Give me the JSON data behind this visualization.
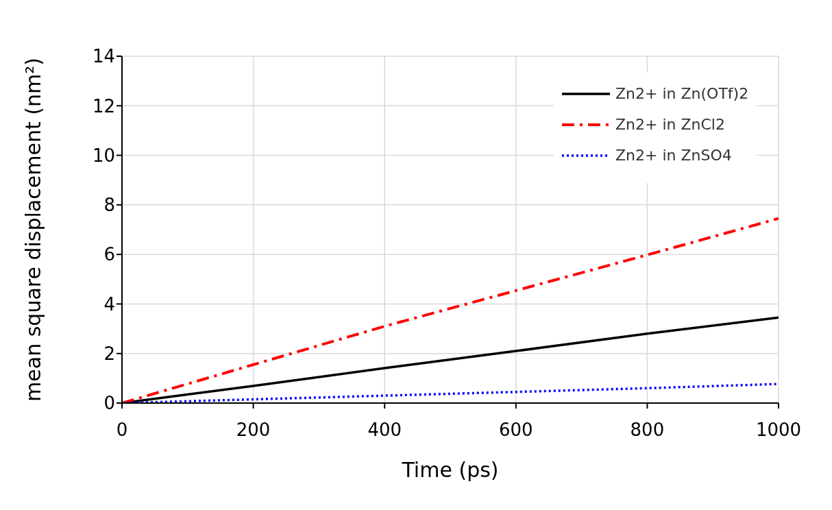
{
  "chart_data": {
    "type": "line",
    "xlabel": "Time (ps)",
    "ylabel": "mean square displacement (nm²)",
    "x": [
      0,
      200,
      400,
      600,
      800,
      1000
    ],
    "series": [
      {
        "name": "Zn2+ in Zn(OTf)2",
        "color": "#000000",
        "line_style": "solid",
        "values": [
          0,
          0.69,
          1.41,
          2.1,
          2.8,
          3.45
        ]
      },
      {
        "name": "Zn2+ in ZnCl2",
        "color": "#ff0000",
        "line_style": "dashed",
        "values": [
          0,
          1.55,
          3.1,
          4.54,
          5.98,
          7.45
        ]
      },
      {
        "name": "Zn2+ in ZnSO4",
        "color": "#0000ff",
        "line_style": "dotted",
        "values": [
          0,
          0.15,
          0.3,
          0.45,
          0.6,
          0.77
        ]
      }
    ],
    "xlim": [
      0,
      1000
    ],
    "xticks": [
      0,
      200,
      400,
      600,
      800,
      1000
    ],
    "ylim": [
      0,
      14
    ],
    "yticks": [
      0,
      2,
      4,
      6,
      8,
      10,
      12,
      14
    ],
    "grid": true,
    "legend": "top right",
    "marker": "none"
  }
}
